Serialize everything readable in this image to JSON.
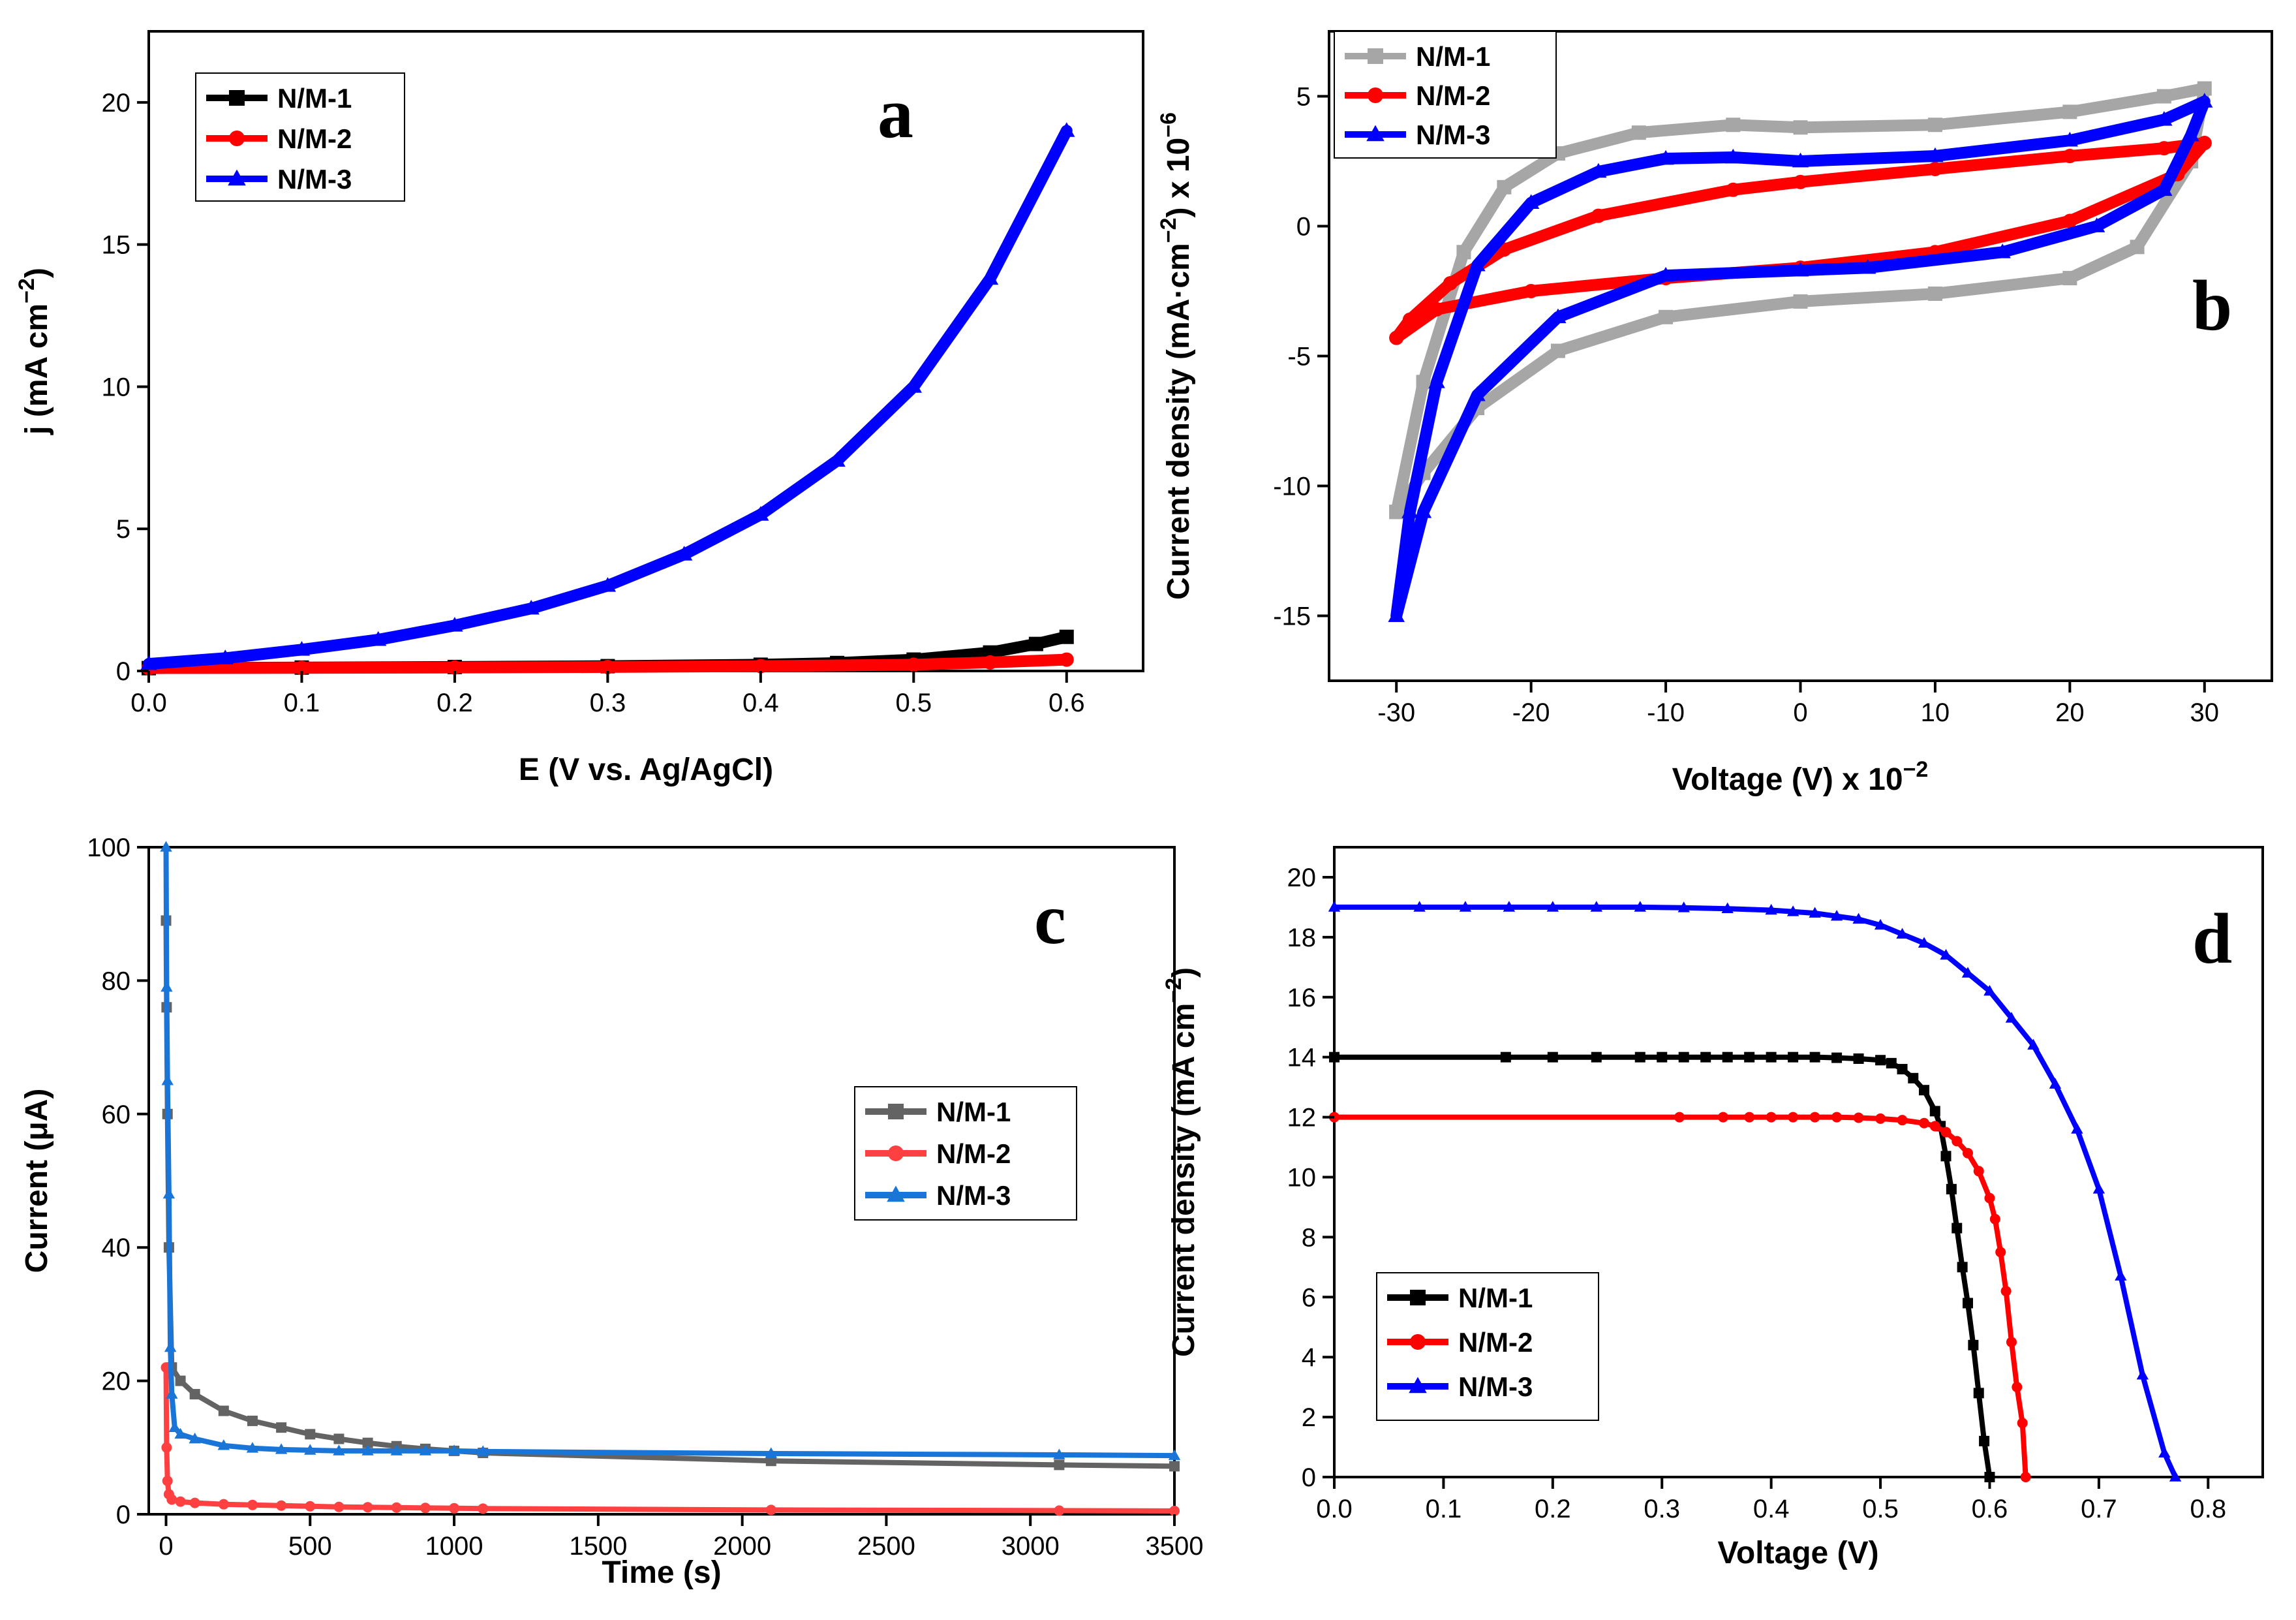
{
  "chart_data": [
    {
      "type": "line",
      "panel": "a",
      "xlabel": "E (V vs. Ag/AgCl)",
      "ylabel": "j (mA cm",
      "ylabel_sup": "−2",
      "ylabel_close": ")",
      "xlim": [
        0,
        0.65
      ],
      "ylim": [
        0,
        22.5
      ],
      "xticks": [
        "0.0",
        "0.1",
        "0.2",
        "0.3",
        "0.4",
        "0.5",
        "0.6"
      ],
      "yticks": [
        "0",
        "5",
        "10",
        "15",
        "20"
      ],
      "legend_position": "top-left",
      "series": [
        {
          "name": "N/M-1",
          "color": "#000000",
          "marker": "square",
          "x": [
            0,
            0.1,
            0.2,
            0.3,
            0.4,
            0.45,
            0.5,
            0.55,
            0.58,
            0.6
          ],
          "y": [
            0.1,
            0.12,
            0.14,
            0.17,
            0.22,
            0.28,
            0.4,
            0.65,
            0.95,
            1.2
          ]
        },
        {
          "name": "N/M-2",
          "color": "#ff0000",
          "marker": "circle",
          "x": [
            0,
            0.1,
            0.2,
            0.3,
            0.4,
            0.5,
            0.55,
            0.6
          ],
          "y": [
            0.1,
            0.11,
            0.12,
            0.14,
            0.17,
            0.22,
            0.3,
            0.4
          ]
        },
        {
          "name": "N/M-3",
          "color": "#0000ff",
          "marker": "triangle",
          "x": [
            0,
            0.05,
            0.1,
            0.15,
            0.2,
            0.25,
            0.3,
            0.35,
            0.4,
            0.45,
            0.5,
            0.55,
            0.6
          ],
          "y": [
            0.25,
            0.45,
            0.75,
            1.1,
            1.6,
            2.2,
            3.0,
            4.1,
            5.5,
            7.4,
            10.0,
            13.8,
            19.0
          ]
        }
      ]
    },
    {
      "type": "line",
      "panel": "b",
      "xlabel": "Voltage (V) x 10",
      "xlabel_sup": "−2",
      "ylabel": "Current density (mA·cm",
      "ylabel_sup": "−2",
      "ylabel_close": ") x 10",
      "ylabel_sup2": "−6",
      "xlim": [
        -35,
        35
      ],
      "ylim": [
        -17.5,
        7.5
      ],
      "xticks": [
        "-30",
        "-20",
        "-10",
        "0",
        "10",
        "20",
        "30"
      ],
      "yticks": [
        "-15",
        "-10",
        "-5",
        "0",
        "5"
      ],
      "legend_position": "top-left",
      "series": [
        {
          "name": "N/M-1",
          "color": "#a6a6a6",
          "marker": "square",
          "x": [
            -30,
            -28,
            -25,
            -22,
            -18,
            -12,
            -5,
            0,
            10,
            20,
            27,
            30,
            29,
            25,
            20,
            10,
            0,
            -10,
            -18,
            -24,
            -28,
            -30
          ],
          "y": [
            -11,
            -6,
            -1,
            1.5,
            2.8,
            3.6,
            3.9,
            3.8,
            3.9,
            4.4,
            5.0,
            5.3,
            2.5,
            -0.8,
            -2.0,
            -2.6,
            -2.9,
            -3.5,
            -4.8,
            -7.0,
            -9.5,
            -11
          ]
        },
        {
          "name": "N/M-2",
          "color": "#ff0000",
          "marker": "circle",
          "x": [
            -30,
            -29,
            -26,
            -22,
            -15,
            -5,
            0,
            10,
            20,
            27,
            30,
            30,
            28,
            20,
            10,
            0,
            -10,
            -20,
            -27,
            -30
          ],
          "y": [
            -4.3,
            -3.6,
            -2.2,
            -0.9,
            0.4,
            1.4,
            1.7,
            2.2,
            2.7,
            3.0,
            3.2,
            3.2,
            2.0,
            0.2,
            -1.0,
            -1.6,
            -2.0,
            -2.5,
            -3.2,
            -4.3
          ]
        },
        {
          "name": "N/M-3",
          "color": "#0000ff",
          "marker": "triangle",
          "x": [
            -30,
            -29,
            -27,
            -24,
            -20,
            -15,
            -10,
            -5,
            0,
            10,
            20,
            27,
            30,
            29,
            27,
            22,
            15,
            5,
            0,
            -10,
            -18,
            -24,
            -28,
            -30
          ],
          "y": [
            -15,
            -11,
            -6,
            -1.5,
            0.9,
            2.1,
            2.6,
            2.65,
            2.5,
            2.7,
            3.3,
            4.1,
            4.8,
            3.5,
            1.4,
            0,
            -1,
            -1.6,
            -1.7,
            -1.9,
            -3.5,
            -6.5,
            -11,
            -15
          ]
        }
      ]
    },
    {
      "type": "line",
      "panel": "c",
      "xlabel": "Time (s)",
      "ylabel": "Current (μA)",
      "xlim": [
        -60,
        3500
      ],
      "ylim": [
        0,
        100
      ],
      "xticks": [
        "0",
        "500",
        "1000",
        "1500",
        "2000",
        "2500",
        "3000",
        "3500"
      ],
      "yticks": [
        "0",
        "20",
        "40",
        "60",
        "80",
        "100"
      ],
      "legend_position": "center-right",
      "series": [
        {
          "name": "N/M-1",
          "color": "#636363",
          "marker": "square",
          "x": [
            0,
            2,
            5,
            10,
            20,
            50,
            100,
            200,
            300,
            400,
            500,
            600,
            700,
            800,
            900,
            1000,
            1100,
            2100,
            3100,
            3500
          ],
          "y": [
            89,
            76,
            60,
            40,
            22,
            20,
            18,
            15.5,
            14,
            13,
            12,
            11.3,
            10.7,
            10.2,
            9.8,
            9.5,
            9.2,
            8.0,
            7.4,
            7.2
          ]
        },
        {
          "name": "N/M-2",
          "color": "#ff4040",
          "marker": "circle",
          "x": [
            0,
            2,
            5,
            10,
            20,
            50,
            100,
            200,
            300,
            400,
            500,
            600,
            700,
            800,
            900,
            1000,
            1100,
            2100,
            3100,
            3500
          ],
          "y": [
            22,
            10,
            5,
            3,
            2.2,
            1.9,
            1.7,
            1.5,
            1.4,
            1.3,
            1.2,
            1.1,
            1.05,
            1.0,
            0.95,
            0.9,
            0.85,
            0.65,
            0.55,
            0.5
          ]
        },
        {
          "name": "N/M-3",
          "color": "#1a75d9",
          "marker": "triangle",
          "x": [
            0,
            2,
            5,
            10,
            15,
            20,
            30,
            50,
            100,
            200,
            300,
            400,
            500,
            600,
            700,
            800,
            900,
            1000,
            1100,
            2100,
            3100,
            3500
          ],
          "y": [
            100,
            79,
            65,
            48,
            25,
            18,
            13,
            12,
            11.3,
            10.3,
            9.9,
            9.7,
            9.6,
            9.5,
            9.5,
            9.5,
            9.5,
            9.5,
            9.4,
            9.1,
            8.9,
            8.8
          ]
        }
      ]
    },
    {
      "type": "line",
      "panel": "d",
      "xlabel": "Voltage (V)",
      "ylabel": "Current density (mA cm",
      "ylabel_sup": "−2",
      "ylabel_close": ")",
      "xlim": [
        0,
        0.85
      ],
      "ylim": [
        0,
        21
      ],
      "xticks": [
        "0.0",
        "0.1",
        "0.2",
        "0.3",
        "0.4",
        "0.5",
        "0.6",
        "0.7",
        "0.8"
      ],
      "yticks": [
        "0",
        "2",
        "4",
        "6",
        "8",
        "10",
        "12",
        "14",
        "16",
        "18",
        "20"
      ],
      "legend_position": "bottom-left",
      "series": [
        {
          "name": "N/M-1",
          "color": "#000000",
          "marker": "square",
          "x": [
            0,
            0.157,
            0.2,
            0.24,
            0.28,
            0.3,
            0.32,
            0.34,
            0.36,
            0.38,
            0.4,
            0.42,
            0.44,
            0.46,
            0.48,
            0.5,
            0.51,
            0.52,
            0.53,
            0.54,
            0.55,
            0.555,
            0.56,
            0.565,
            0.57,
            0.575,
            0.58,
            0.585,
            0.59,
            0.595,
            0.6
          ],
          "y": [
            14,
            14,
            14,
            14,
            14,
            14,
            14,
            14,
            14,
            14,
            14,
            14,
            14,
            13.98,
            13.95,
            13.9,
            13.8,
            13.6,
            13.3,
            12.9,
            12.2,
            11.7,
            10.7,
            9.6,
            8.3,
            7.0,
            5.8,
            4.4,
            2.8,
            1.2,
            0
          ]
        },
        {
          "name": "N/M-2",
          "color": "#ff0000",
          "marker": "circle",
          "x": [
            0,
            0.316,
            0.356,
            0.38,
            0.4,
            0.42,
            0.44,
            0.46,
            0.48,
            0.5,
            0.52,
            0.54,
            0.55,
            0.56,
            0.57,
            0.58,
            0.59,
            0.6,
            0.605,
            0.61,
            0.615,
            0.62,
            0.625,
            0.63,
            0.633
          ],
          "y": [
            12,
            12,
            12,
            12,
            12,
            12,
            12,
            12,
            11.98,
            11.95,
            11.9,
            11.8,
            11.7,
            11.5,
            11.2,
            10.8,
            10.2,
            9.3,
            8.6,
            7.5,
            6.2,
            4.5,
            3.0,
            1.8,
            0
          ]
        },
        {
          "name": "N/M-3",
          "color": "#0000ff",
          "marker": "triangle",
          "x": [
            0,
            0.078,
            0.12,
            0.16,
            0.2,
            0.24,
            0.28,
            0.32,
            0.36,
            0.4,
            0.42,
            0.44,
            0.46,
            0.48,
            0.5,
            0.52,
            0.54,
            0.56,
            0.58,
            0.6,
            0.62,
            0.64,
            0.66,
            0.68,
            0.7,
            0.72,
            0.74,
            0.76,
            0.77
          ],
          "y": [
            19,
            19,
            19,
            19,
            19,
            19,
            19,
            18.98,
            18.95,
            18.9,
            18.85,
            18.8,
            18.7,
            18.6,
            18.4,
            18.1,
            17.8,
            17.4,
            16.8,
            16.2,
            15.3,
            14.4,
            13.1,
            11.6,
            9.6,
            6.7,
            3.4,
            0.8,
            0
          ]
        }
      ]
    }
  ]
}
